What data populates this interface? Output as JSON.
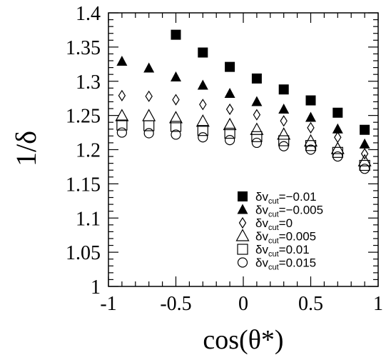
{
  "chart_data": {
    "type": "scatter",
    "title": "",
    "xlabel": "cos(θ*)",
    "ylabel": "1/δ",
    "xlim": [
      -1,
      1
    ],
    "ylim": [
      1,
      1.4
    ],
    "xticks": [
      -1,
      -0.5,
      0,
      0.5,
      1
    ],
    "xtick_labels": [
      "-1",
      "-0.5",
      "0",
      "0.5",
      "1"
    ],
    "yticks": [
      1,
      1.05,
      1.1,
      1.15,
      1.2,
      1.25,
      1.3,
      1.35,
      1.4
    ],
    "ytick_labels": [
      "1",
      "1.05",
      "1.1",
      "1.15",
      "1.2",
      "1.25",
      "1.3",
      "1.35",
      "1.4"
    ],
    "grid": false,
    "legend_position": "bottom-right",
    "series": [
      {
        "legend_prefix": "δv",
        "legend_sub": "cut",
        "legend_value": "=−0.01",
        "marker": "filled-square",
        "x": [
          -0.5,
          -0.3,
          -0.1,
          0.1,
          0.3,
          0.5,
          0.7,
          0.9
        ],
        "y": [
          1.368,
          1.342,
          1.321,
          1.304,
          1.288,
          1.272,
          1.254,
          1.229
        ]
      },
      {
        "legend_prefix": "δv",
        "legend_sub": "cut",
        "legend_value": "=−0.005",
        "marker": "filled-triangle",
        "x": [
          -0.9,
          -0.7,
          -0.5,
          -0.3,
          -0.1,
          0.1,
          0.3,
          0.5,
          0.7,
          0.9
        ],
        "y": [
          1.329,
          1.319,
          1.306,
          1.294,
          1.282,
          1.27,
          1.259,
          1.247,
          1.23,
          1.208
        ]
      },
      {
        "legend_prefix": "δv",
        "legend_sub": "cut",
        "legend_value": "=0",
        "marker": "open-diamond",
        "x": [
          -0.9,
          -0.7,
          -0.5,
          -0.3,
          -0.1,
          0.1,
          0.3,
          0.5,
          0.7,
          0.9
        ],
        "y": [
          1.279,
          1.278,
          1.273,
          1.266,
          1.259,
          1.251,
          1.242,
          1.232,
          1.218,
          1.194
        ]
      },
      {
        "legend_prefix": "δv",
        "legend_sub": "cut",
        "legend_value": "=0.005",
        "marker": "open-triangle",
        "x": [
          -0.9,
          -0.7,
          -0.5,
          -0.3,
          -0.1,
          0.1,
          0.3,
          0.5,
          0.7,
          0.9
        ],
        "y": [
          1.249,
          1.249,
          1.246,
          1.241,
          1.236,
          1.229,
          1.222,
          1.212,
          1.201,
          1.183
        ]
      },
      {
        "legend_prefix": "δv",
        "legend_sub": "cut",
        "legend_value": "=0.01",
        "marker": "open-square",
        "x": [
          -0.9,
          -0.7,
          -0.5,
          -0.3,
          -0.1,
          0.1,
          0.3,
          0.5,
          0.7,
          0.9
        ],
        "y": [
          1.236,
          1.235,
          1.234,
          1.228,
          1.224,
          1.219,
          1.213,
          1.206,
          1.196,
          1.177
        ]
      },
      {
        "legend_prefix": "δv",
        "legend_sub": "cut",
        "legend_value": "=0.015",
        "marker": "open-circle",
        "x": [
          -0.9,
          -0.7,
          -0.5,
          -0.3,
          -0.1,
          0.1,
          0.3,
          0.5,
          0.7,
          0.9
        ],
        "y": [
          1.225,
          1.224,
          1.222,
          1.218,
          1.214,
          1.21,
          1.205,
          1.2,
          1.19,
          1.172
        ]
      }
    ]
  }
}
